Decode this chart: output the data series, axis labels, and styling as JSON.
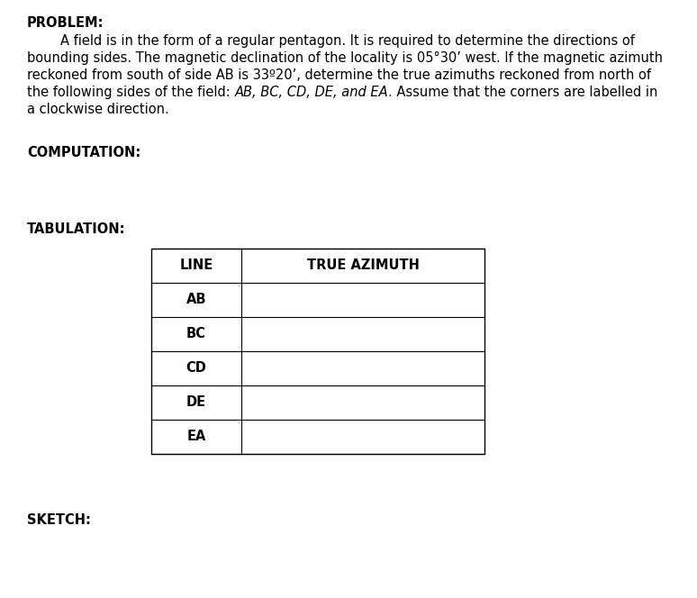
{
  "title": "PROBLEM:",
  "line1": "        A field is in the form of a regular pentagon. It is required to determine the directions of",
  "line2": "bounding sides. The magnetic declination of the locality is 05°30’ west. If the magnetic azimuth",
  "line3": "reckoned from south of side AB is 33º20’, determine the true azimuths reckoned from north of",
  "line4a": "the following sides of the field: ",
  "line4b": "AB, BC, CD, DE, and EA",
  "line4c": ". Assume that the corners are labelled in",
  "line5": "a clockwise direction.",
  "computation_label": "COMPUTATION:",
  "tabulation_label": "TABULATION:",
  "table_headers": [
    "LINE",
    "TRUE AZIMUTH"
  ],
  "table_rows": [
    "AB",
    "BC",
    "CD",
    "DE",
    "EA"
  ],
  "sketch_label": "SKETCH:",
  "bg_color": "#ffffff",
  "text_color": "#000000",
  "font_size": 10.5
}
